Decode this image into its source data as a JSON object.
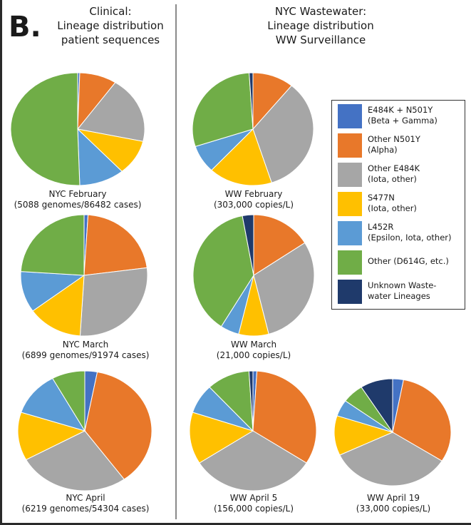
{
  "panel_letter": "B.",
  "headers": {
    "clinical": [
      "Clinical:",
      "Lineage distribution",
      "patient sequences"
    ],
    "wastewater": [
      "NYC Wastewater:",
      "Lineage distribution",
      "WW Surveillance"
    ]
  },
  "colors": {
    "e484k_n501y": "#4472c4",
    "other_n501y": "#e8782a",
    "other_e484k": "#a6a6a6",
    "s477n": "#ffc000",
    "l452r": "#5b9bd5",
    "other": "#70ad47",
    "unknown": "#1f3a6b"
  },
  "legend": [
    {
      "key": "e484k_n501y",
      "line1": "E484K + N501Y",
      "line2": "(Beta + Gamma)"
    },
    {
      "key": "other_n501y",
      "line1": "Other N501Y",
      "line2": "(Alpha)"
    },
    {
      "key": "other_e484k",
      "line1": "Other E484K",
      "line2": "(Iota, other)"
    },
    {
      "key": "s477n",
      "line1": "S477N",
      "line2": "(Iota, other)"
    },
    {
      "key": "l452r",
      "line1": "L452R",
      "line2": "(Epsilon, Iota, other)"
    },
    {
      "key": "other",
      "line1": "Other (D614G, etc.)",
      "line2": ""
    },
    {
      "key": "unknown",
      "line1": "Unknown Waste-",
      "line2": "water Lineages"
    }
  ],
  "chart_data": [
    {
      "type": "pie",
      "label": "NYC February",
      "sublabel": "(5088 genomes/86482 cases)",
      "categories": [
        "E484K + N501Y",
        "Other N501Y",
        "Other E484K",
        "S477N",
        "L452R",
        "Other (D614G, etc.)",
        "Unknown Waste-water Lineages"
      ],
      "values": [
        0.5,
        9,
        19,
        10,
        11,
        50.5,
        0
      ]
    },
    {
      "type": "pie",
      "label": "NYC March",
      "sublabel": "(6899 genomes/91974 cases)",
      "categories": [
        "E484K + N501Y",
        "Other N501Y",
        "Other E484K",
        "S477N",
        "L452R",
        "Other (D614G, etc.)",
        "Unknown Waste-water Lineages"
      ],
      "values": [
        1,
        22,
        28,
        14,
        11,
        24,
        0
      ]
    },
    {
      "type": "pie",
      "label": "NYC April",
      "sublabel": "(6219 genomes/54304 cases)",
      "categories": [
        "E484K + N501Y",
        "Other N501Y",
        "Other E484K",
        "S477N",
        "L452R",
        "Other (D614G, etc.)",
        "Unknown Waste-water Lineages"
      ],
      "values": [
        3,
        37,
        27,
        13,
        12,
        8,
        0
      ]
    },
    {
      "type": "pie",
      "label": "WW February",
      "sublabel": "(303,000 copies/L)",
      "categories": [
        "E484K + N501Y",
        "Other N501Y",
        "Other E484K",
        "S477N",
        "L452R",
        "Other (D614G, etc.)",
        "Unknown Waste-water Lineages"
      ],
      "values": [
        0,
        11,
        34,
        17,
        8,
        29,
        1
      ]
    },
    {
      "type": "pie",
      "label": "WW March",
      "sublabel": "(21,000 copies/L)",
      "categories": [
        "E484K + N501Y",
        "Other N501Y",
        "Other E484K",
        "S477N",
        "L452R",
        "Other (D614G, etc.)",
        "Unknown Waste-water Lineages"
      ],
      "values": [
        0,
        16,
        30,
        8,
        5,
        38,
        3
      ]
    },
    {
      "type": "pie",
      "label": "WW April 5",
      "sublabel": "(156,000 copies/L)",
      "categories": [
        "E484K + N501Y",
        "Other N501Y",
        "Other E484K",
        "S477N",
        "L452R",
        "Other (D614G, etc.)",
        "Unknown Waste-water Lineages"
      ],
      "values": [
        1,
        33,
        32,
        14,
        8,
        11,
        1
      ]
    },
    {
      "type": "pie",
      "label": "WW April 19",
      "sublabel": "(33,000 copies/L)",
      "categories": [
        "E484K + N501Y",
        "Other N501Y",
        "Other E484K",
        "S477N",
        "L452R",
        "Other (D614G, etc.)",
        "Unknown Waste-water Lineages"
      ],
      "values": [
        3,
        31,
        34,
        12,
        5,
        6,
        9
      ]
    }
  ]
}
